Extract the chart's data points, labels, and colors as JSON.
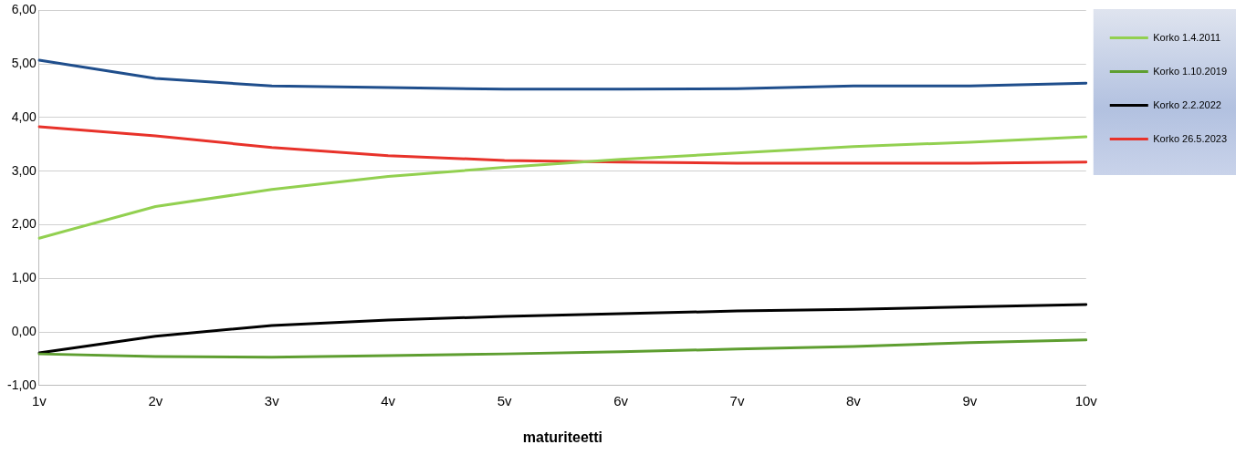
{
  "chart_data": {
    "type": "line",
    "xlabel": "maturiteetti",
    "categories": [
      "1v",
      "2v",
      "3v",
      "4v",
      "5v",
      "6v",
      "7v",
      "8v",
      "9v",
      "10v"
    ],
    "series": [
      {
        "color": "#1f4e8c",
        "values": [
          5.07,
          4.73,
          4.59,
          4.56,
          4.53,
          4.53,
          4.54,
          4.59,
          4.59,
          4.64
        ]
      },
      {
        "name": "Korko 1.4.2011",
        "color": "#92d050",
        "values": [
          1.75,
          2.34,
          2.66,
          2.9,
          3.07,
          3.22,
          3.34,
          3.46,
          3.54,
          3.64
        ]
      },
      {
        "name": "Korko 1.10.2019",
        "color": "#5e9e30",
        "values": [
          -0.41,
          -0.46,
          -0.47,
          -0.44,
          -0.41,
          -0.37,
          -0.32,
          -0.27,
          -0.2,
          -0.15
        ]
      },
      {
        "name": "Korko 2.2.2022",
        "color": "#000000",
        "values": [
          -0.39,
          -0.08,
          0.12,
          0.22,
          0.29,
          0.34,
          0.39,
          0.42,
          0.47,
          0.51
        ]
      },
      {
        "name": "Korko 26.5.2023",
        "color": "#e8322a",
        "values": [
          3.83,
          3.66,
          3.44,
          3.29,
          3.2,
          3.17,
          3.15,
          3.15,
          3.15,
          3.17
        ]
      }
    ],
    "ylim": [
      -1,
      6
    ],
    "yticks": [
      {
        "value": -1,
        "label": "-1,00"
      },
      {
        "value": 0,
        "label": "0,00"
      },
      {
        "value": 1,
        "label": "1,00"
      },
      {
        "value": 2,
        "label": "2,00"
      },
      {
        "value": 3,
        "label": "3,00"
      },
      {
        "value": 4,
        "label": "4,00"
      },
      {
        "value": 5,
        "label": "5,00"
      },
      {
        "value": 6,
        "label": "6,00"
      }
    ],
    "grid": "y",
    "legend": "top right",
    "marker": "none",
    "line_style": "solid"
  }
}
